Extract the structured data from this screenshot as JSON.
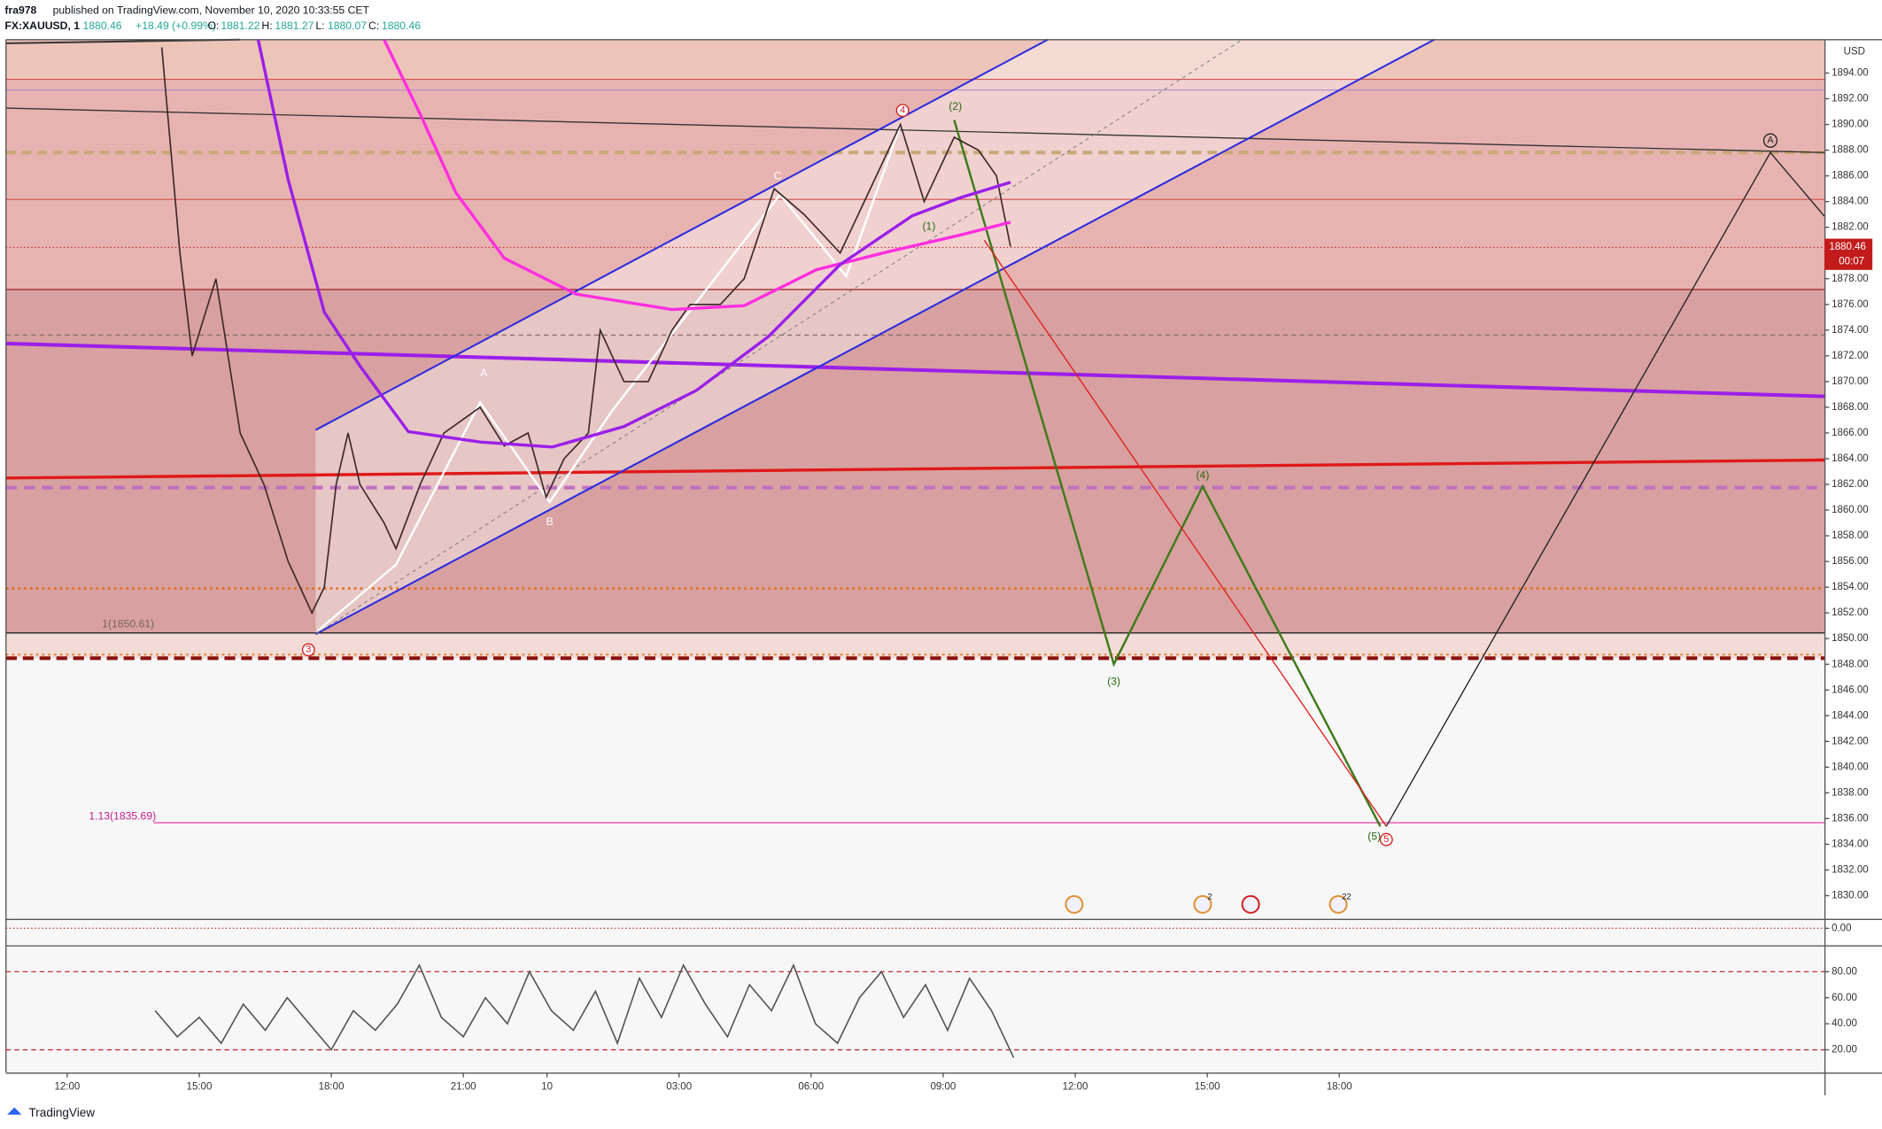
{
  "header": {
    "author": "fra978",
    "published": "published on TradingView.com, November 10, 2020 10:33:55 CET",
    "symbol": "FX:XAUUSD, 1",
    "change": "+18.49 (+0.99%)",
    "ohlc": [
      [
        "O:",
        "1881.22"
      ],
      [
        "H:",
        "1881.27"
      ],
      [
        "L:",
        "1880.07"
      ],
      [
        "C:",
        "1880.46"
      ]
    ]
  },
  "footer": {
    "brand": "TradingView"
  },
  "annotations": [
    "A",
    "B",
    "C",
    "(1)",
    "(2)",
    "(3)",
    "(4)",
    "(5)",
    "1(1850.61)",
    "1.13(1835.69)",
    "3",
    "5",
    "4",
    "A",
    "2",
    "22"
  ],
  "chart_data": [
    {
      "type": "line",
      "currency": "USD",
      "last_price": 1880.46,
      "countdown": "00:07",
      "ylim": [
        1828.2,
        1896.6
      ],
      "xlim": [
        -1.39,
        39.92
      ],
      "yticks": [
        {
          "value": 1830,
          "label": "1830.00"
        },
        {
          "value": 1832,
          "label": "1832.00"
        },
        {
          "value": 1834,
          "label": "1834.00"
        },
        {
          "value": 1836,
          "label": "1836.00"
        },
        {
          "value": 1838,
          "label": "1838.00"
        },
        {
          "value": 1840,
          "label": "1840.00"
        },
        {
          "value": 1842,
          "label": "1842.00"
        },
        {
          "value": 1844,
          "label": "1844.00"
        },
        {
          "value": 1846,
          "label": "1846.00"
        },
        {
          "value": 1848,
          "label": "1848.00"
        },
        {
          "value": 1850,
          "label": "1850.00"
        },
        {
          "value": 1852,
          "label": "1852.00"
        },
        {
          "value": 1854,
          "label": "1854.00"
        },
        {
          "value": 1856,
          "label": "1856.00"
        },
        {
          "value": 1858,
          "label": "1858.00"
        },
        {
          "value": 1860,
          "label": "1860.00"
        },
        {
          "value": 1862,
          "label": "1862.00"
        },
        {
          "value": 1864,
          "label": "1864.00"
        },
        {
          "value": 1866,
          "label": "1866.00"
        },
        {
          "value": 1868,
          "label": "1868.00"
        },
        {
          "value": 1870,
          "label": "1870.00"
        },
        {
          "value": 1872,
          "label": "1872.00"
        },
        {
          "value": 1874,
          "label": "1874.00"
        },
        {
          "value": 1876,
          "label": "1876.00"
        },
        {
          "value": 1878,
          "label": "1878.00"
        },
        {
          "value": 1880,
          "label": "1880.00"
        },
        {
          "value": 1882,
          "label": "1882.00"
        },
        {
          "value": 1884,
          "label": "1884.00"
        },
        {
          "value": 1886,
          "label": "1886.00"
        },
        {
          "value": 1888,
          "label": "1888.00"
        },
        {
          "value": 1890,
          "label": "1890.00"
        },
        {
          "value": 1892,
          "label": "1892.00"
        },
        {
          "value": 1894,
          "label": "1894.00"
        }
      ],
      "xticks": [
        {
          "value": 0,
          "label": "12:00"
        },
        {
          "value": 3,
          "label": "15:00"
        },
        {
          "value": 6,
          "label": "18:00"
        },
        {
          "value": 9,
          "label": "21:00"
        },
        {
          "value": 10.9,
          "label": "10"
        },
        {
          "value": 13.9,
          "label": "03:00"
        },
        {
          "value": 16.9,
          "label": "06:00"
        },
        {
          "value": 19.9,
          "label": "09:00"
        },
        {
          "value": 22.9,
          "label": "12:00"
        },
        {
          "value": 25.9,
          "label": "15:00"
        },
        {
          "value": 28.9,
          "label": "18:00"
        }
      ],
      "series": [
        {
          "color": "#3b2626",
          "x": [
            2.15,
            2.56,
            2.84,
            3.38,
            3.93,
            4.47,
            5.02,
            5.56,
            5.84,
            6.11,
            6.38,
            6.65,
            7.2,
            7.47,
            8.02,
            8.56,
            9.38,
            9.93,
            10.47,
            10.88,
            11.29,
            11.84,
            12.11,
            12.65,
            13.2,
            13.74,
            14.15,
            14.84,
            15.38,
            16.06,
            16.74,
            17.56,
            18.11,
            18.93,
            19.47,
            20.15,
            20.7,
            21.11,
            21.43
          ],
          "values": [
            1896,
            1880,
            1872,
            1878,
            1866,
            1862,
            1856,
            1852,
            1854,
            1862,
            1866,
            1862,
            1859,
            1857,
            1862,
            1866,
            1868,
            1865,
            1866,
            1861,
            1864,
            1866,
            1874,
            1870,
            1870,
            1874,
            1876,
            1876,
            1878,
            1885,
            1883,
            1880,
            1884,
            1890,
            1884,
            1889,
            1888,
            1886,
            1880.5
          ]
        },
        {
          "color": "#ff2ee0",
          "x": [
            7.2,
            8.02,
            8.83,
            9.93,
            11.56,
            13.74,
            15.38,
            17.02,
            18.65,
            20.29,
            21.43
          ],
          "values": [
            1896.6,
            1890.8,
            1884.7,
            1879.6,
            1876.8,
            1875.6,
            1875.9,
            1878.7,
            1880.1,
            1881.4,
            1882.4
          ]
        },
        {
          "color": "#9b1fe8",
          "x": [
            4.34,
            5.02,
            5.84,
            6.65,
            7.75,
            9.38,
            11.02,
            12.65,
            14.29,
            15.93,
            17.56,
            19.2,
            20.29,
            21.43
          ],
          "values": [
            1896.6,
            1885.7,
            1875.4,
            1871.2,
            1866.1,
            1865.3,
            1864.9,
            1866.5,
            1869.3,
            1873.5,
            1879.1,
            1882.9,
            1884.3,
            1885.5
          ]
        }
      ]
    },
    {
      "type": "line",
      "ylim": [
        -1.9,
        1
      ],
      "yticks": [
        {
          "value": 0,
          "label": "0.00"
        }
      ],
      "series": []
    },
    {
      "type": "line",
      "ylim": [
        2.5,
        98.5
      ],
      "bands": [
        20,
        80
      ],
      "yticks": [
        {
          "value": 20,
          "label": "20.00"
        },
        {
          "value": 40,
          "label": "40.00"
        },
        {
          "value": 60,
          "label": "60.00"
        },
        {
          "value": 80,
          "label": "80.00"
        }
      ],
      "series": [
        {
          "color": "#555555",
          "x": [
            2,
            2.5,
            3,
            3.5,
            4,
            4.5,
            5,
            5.5,
            6,
            6.5,
            7,
            7.5,
            8,
            8.5,
            9,
            9.5,
            10,
            10.5,
            11,
            11.5,
            12,
            12.5,
            13,
            13.5,
            14,
            14.5,
            15,
            15.5,
            16,
            16.5,
            17,
            17.5,
            18,
            18.5,
            19,
            19.5,
            20,
            20.5,
            21,
            21.5
          ],
          "values": [
            50,
            30,
            45,
            25,
            55,
            35,
            60,
            40,
            20,
            50,
            35,
            55,
            85,
            45,
            30,
            60,
            40,
            80,
            50,
            35,
            65,
            25,
            75,
            45,
            85,
            55,
            30,
            70,
            50,
            85,
            40,
            25,
            60,
            80,
            45,
            70,
            35,
            75,
            50,
            14
          ]
        }
      ]
    }
  ]
}
